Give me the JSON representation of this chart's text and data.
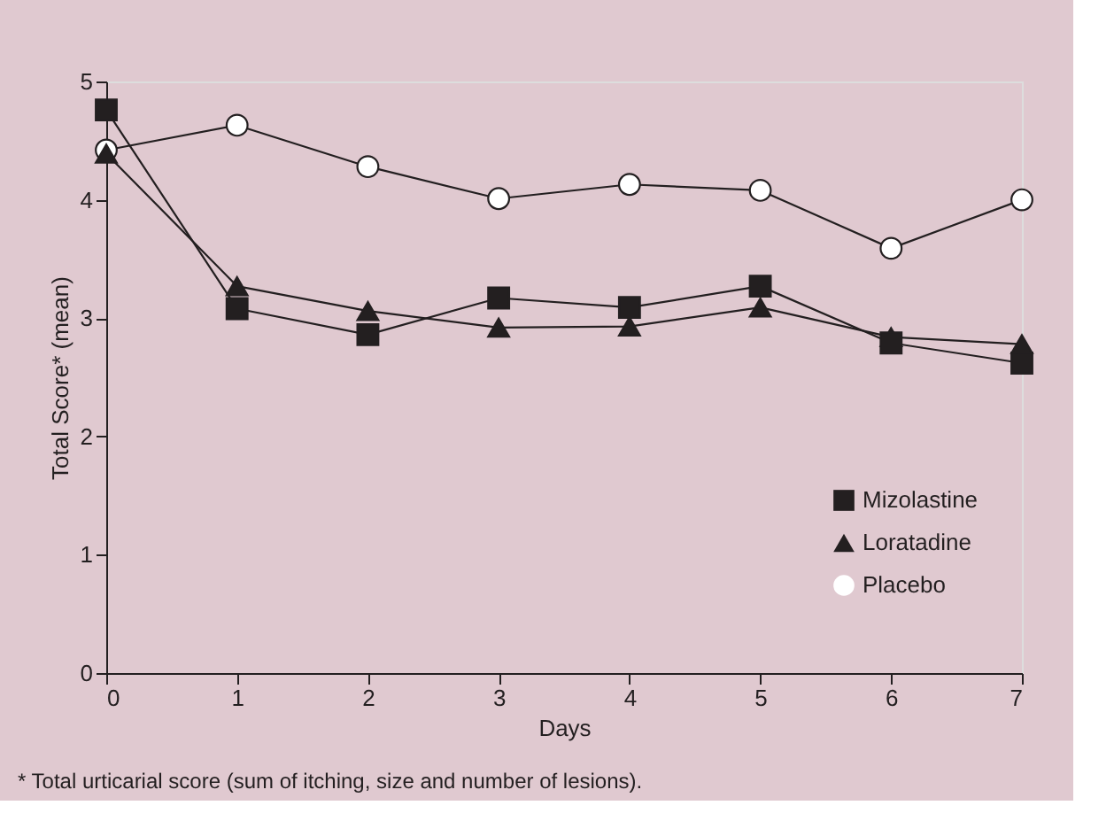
{
  "chart_data": {
    "type": "line",
    "xlabel": "Days",
    "ylabel": "Total Score* (mean)",
    "x": [
      0,
      1,
      2,
      3,
      4,
      5,
      6,
      7
    ],
    "series": [
      {
        "name": "Mizolastine",
        "color": "#231f20",
        "marker": "square",
        "values": [
          4.76,
          3.08,
          2.86,
          3.17,
          3.09,
          3.27,
          2.79,
          2.62
        ]
      },
      {
        "name": "Loratadine",
        "color": "#231f20",
        "marker": "triangle",
        "values": [
          4.39,
          3.27,
          3.06,
          2.92,
          2.93,
          3.09,
          2.84,
          2.78
        ]
      },
      {
        "name": "Placebo",
        "color": "#ffffff",
        "marker": "circle",
        "values": [
          4.42,
          4.63,
          4.28,
          4.01,
          4.13,
          4.08,
          3.59,
          4.0
        ]
      }
    ],
    "xlim": [
      0,
      7
    ],
    "xticks": [
      0,
      1,
      2,
      3,
      4,
      5,
      6,
      7
    ],
    "ylim": [
      0,
      5
    ],
    "yticks": [
      0,
      1,
      2,
      3,
      4,
      5
    ],
    "grid": false,
    "legend": "right",
    "line_style": "solid",
    "annotations": [
      "* Total urticarial score (sum of itching, size and number of lesions)."
    ]
  }
}
